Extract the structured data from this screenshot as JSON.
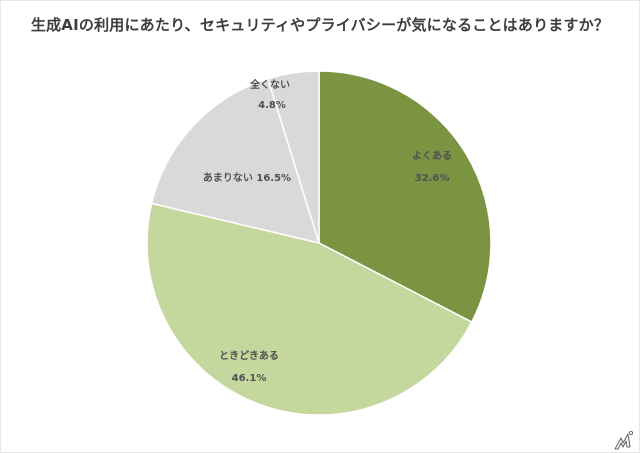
{
  "title": "生成AIの利用にあたり、セキュリティやプライバシーが気になることはありますか？",
  "chart_data": {
    "type": "pie",
    "title": "生成AIの利用にあたり、セキュリティやプライバシーが気になることはありますか？",
    "categories": [
      "よくある",
      "ときどきある",
      "あまりない",
      "全くない"
    ],
    "values": [
      32.6,
      46.1,
      16.5,
      4.8
    ],
    "unit": "%",
    "colors": [
      "#7a9442",
      "#c4d79c",
      "#d9d9d9",
      "#d9d9d9"
    ],
    "start_angle": "12 o'clock, clockwise",
    "legend": "none (data labels on slices)"
  },
  "labels": {
    "yoku_aru": {
      "name": "よくある",
      "value": "32.6%"
    },
    "tokidoki_aru": {
      "name": "ときどきある",
      "value": "46.1%"
    },
    "amari_nai": {
      "name": "あまりない",
      "value": "16.5%",
      "combined": "あまりない 16.5%"
    },
    "mattaku_nai": {
      "name": "全くない",
      "value": "4.8%"
    }
  },
  "watermark": {
    "icon": "itmedia-logo-icon"
  }
}
